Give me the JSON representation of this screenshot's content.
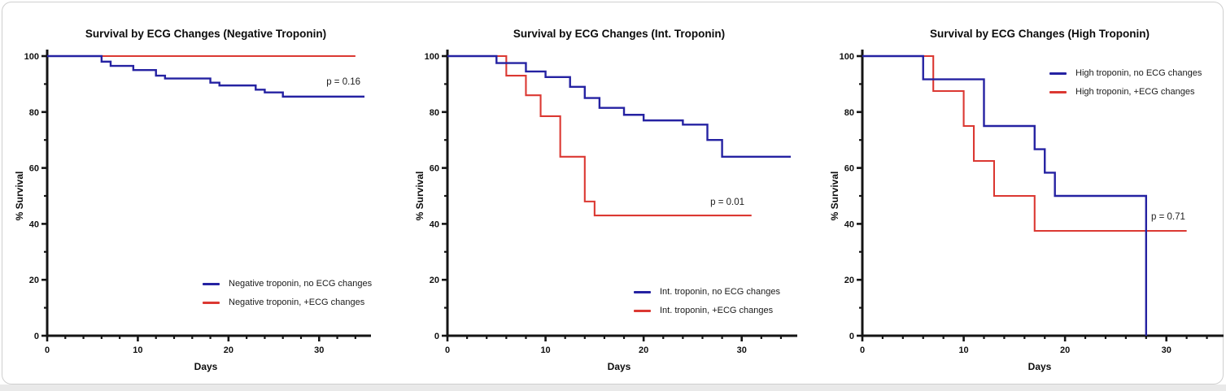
{
  "colors": {
    "blue": "#2522A2",
    "red": "#DB3832",
    "axis": "#141414"
  },
  "chart_data": [
    {
      "type": "line",
      "subtype": "kaplan-meier-step",
      "title": "Survival by ECG Changes (Negative Troponin)",
      "xlabel": "Days",
      "ylabel": "% Survival",
      "xlim": [
        0,
        35
      ],
      "ylim": [
        0,
        100
      ],
      "xticks": [
        0,
        10,
        20,
        30
      ],
      "yticks": [
        0,
        20,
        40,
        60,
        80,
        100
      ],
      "x_minor_step": 2,
      "y_minor_step": 10,
      "grid": false,
      "legend_position": "inside-lower-right",
      "p_annotation": {
        "text": "p = 0.16",
        "x": 30.8,
        "y": 90
      },
      "series": [
        {
          "name": "Negative troponin, no ECG changes",
          "color": "blue",
          "draw_order": 2,
          "start": 100,
          "drops": [
            [
              6,
              98
            ],
            [
              7,
              96.5
            ],
            [
              9.5,
              95
            ],
            [
              12,
              93
            ],
            [
              13,
              92
            ],
            [
              18,
              90.5
            ],
            [
              19,
              89.5
            ],
            [
              23,
              88
            ],
            [
              24,
              87
            ],
            [
              26,
              85.5
            ]
          ],
          "end": 35
        },
        {
          "name": "Negative troponin, +ECG changes",
          "color": "red",
          "draw_order": 1,
          "start": 100,
          "drops": [],
          "end": 34
        }
      ]
    },
    {
      "type": "line",
      "subtype": "kaplan-meier-step",
      "title": "Survival by ECG Changes (Int. Troponin)",
      "xlabel": "Days",
      "ylabel": "% Survival",
      "xlim": [
        0,
        35
      ],
      "ylim": [
        0,
        100
      ],
      "xticks": [
        0,
        10,
        20,
        30
      ],
      "yticks": [
        0,
        20,
        40,
        60,
        80,
        100
      ],
      "x_minor_step": 2,
      "y_minor_step": 10,
      "grid": false,
      "legend_position": "inside-lower-right",
      "p_annotation": {
        "text": "p = 0.01",
        "x": 26.8,
        "y": 47
      },
      "series": [
        {
          "name": "Int. troponin, no ECG changes",
          "color": "blue",
          "draw_order": 2,
          "start": 100,
          "drops": [
            [
              5,
              97.5
            ],
            [
              8,
              94.5
            ],
            [
              10,
              92.5
            ],
            [
              12.5,
              89
            ],
            [
              14,
              85
            ],
            [
              15.5,
              81.5
            ],
            [
              18,
              79
            ],
            [
              20,
              77
            ],
            [
              24,
              75.5
            ],
            [
              26.5,
              70
            ],
            [
              28,
              64
            ]
          ],
          "end": 35
        },
        {
          "name": "Int. troponin, +ECG changes",
          "color": "red",
          "draw_order": 1,
          "start": 100,
          "drops": [
            [
              6,
              93
            ],
            [
              8,
              86
            ],
            [
              9.5,
              78.5
            ],
            [
              11.5,
              64
            ],
            [
              14,
              48
            ],
            [
              15,
              43
            ]
          ],
          "end": 31
        }
      ]
    },
    {
      "type": "line",
      "subtype": "kaplan-meier-step",
      "title": "Survival by ECG Changes (High Troponin)",
      "xlabel": "Days",
      "ylabel": "% Survival",
      "xlim": [
        0,
        35
      ],
      "ylim": [
        0,
        100
      ],
      "xticks": [
        0,
        10,
        20,
        30
      ],
      "yticks": [
        0,
        20,
        40,
        60,
        80,
        100
      ],
      "x_minor_step": 2,
      "y_minor_step": 10,
      "grid": false,
      "legend_position": "inside-upper-right",
      "p_annotation": {
        "text": "p = 0.71",
        "x": 28.5,
        "y": 42
      },
      "series": [
        {
          "name": "High troponin, no ECG changes",
          "color": "blue",
          "draw_order": 2,
          "start": 100,
          "drops": [
            [
              6,
              91.7
            ],
            [
              12,
              75
            ],
            [
              17,
              66.7
            ],
            [
              18,
              58.3
            ],
            [
              19,
              50
            ],
            [
              28,
              0
            ]
          ],
          "end": 28
        },
        {
          "name": "High troponin, +ECG changes",
          "color": "red",
          "draw_order": 1,
          "start": 100,
          "drops": [
            [
              7,
              87.5
            ],
            [
              10,
              75
            ],
            [
              11,
              62.5
            ],
            [
              13,
              50
            ],
            [
              17,
              37.5
            ]
          ],
          "end": 32
        }
      ]
    }
  ]
}
